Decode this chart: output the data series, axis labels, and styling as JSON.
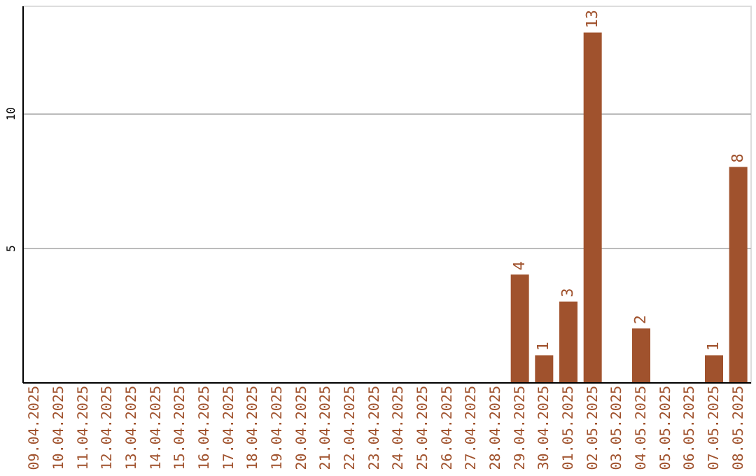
{
  "chart_data": {
    "type": "bar",
    "categories": [
      "09.04.2025",
      "10.04.2025",
      "11.04.2025",
      "12.04.2025",
      "13.04.2025",
      "14.04.2025",
      "15.04.2025",
      "16.04.2025",
      "17.04.2025",
      "18.04.2025",
      "19.04.2025",
      "20.04.2025",
      "21.04.2025",
      "22.04.2025",
      "23.04.2025",
      "24.04.2025",
      "25.04.2025",
      "26.04.2025",
      "27.04.2025",
      "28.04.2025",
      "29.04.2025",
      "30.04.2025",
      "01.05.2025",
      "02.05.2025",
      "03.05.2025",
      "04.05.2025",
      "05.05.2025",
      "06.05.2025",
      "07.05.2025",
      "08.05.2025"
    ],
    "values": [
      0,
      0,
      0,
      0,
      0,
      0,
      0,
      0,
      0,
      0,
      0,
      0,
      0,
      0,
      0,
      0,
      0,
      0,
      0,
      0,
      4,
      1,
      3,
      13,
      0,
      2,
      0,
      0,
      1,
      8
    ],
    "value_labels": [
      null,
      null,
      null,
      null,
      null,
      null,
      null,
      null,
      null,
      null,
      null,
      null,
      null,
      null,
      null,
      null,
      null,
      null,
      null,
      null,
      "4",
      "1",
      "3",
      "13",
      null,
      "2",
      null,
      null,
      "1",
      "8"
    ],
    "color": "#a0522d",
    "ylim": [
      0,
      14
    ],
    "yticks": [
      5,
      10
    ],
    "grid": "y"
  }
}
